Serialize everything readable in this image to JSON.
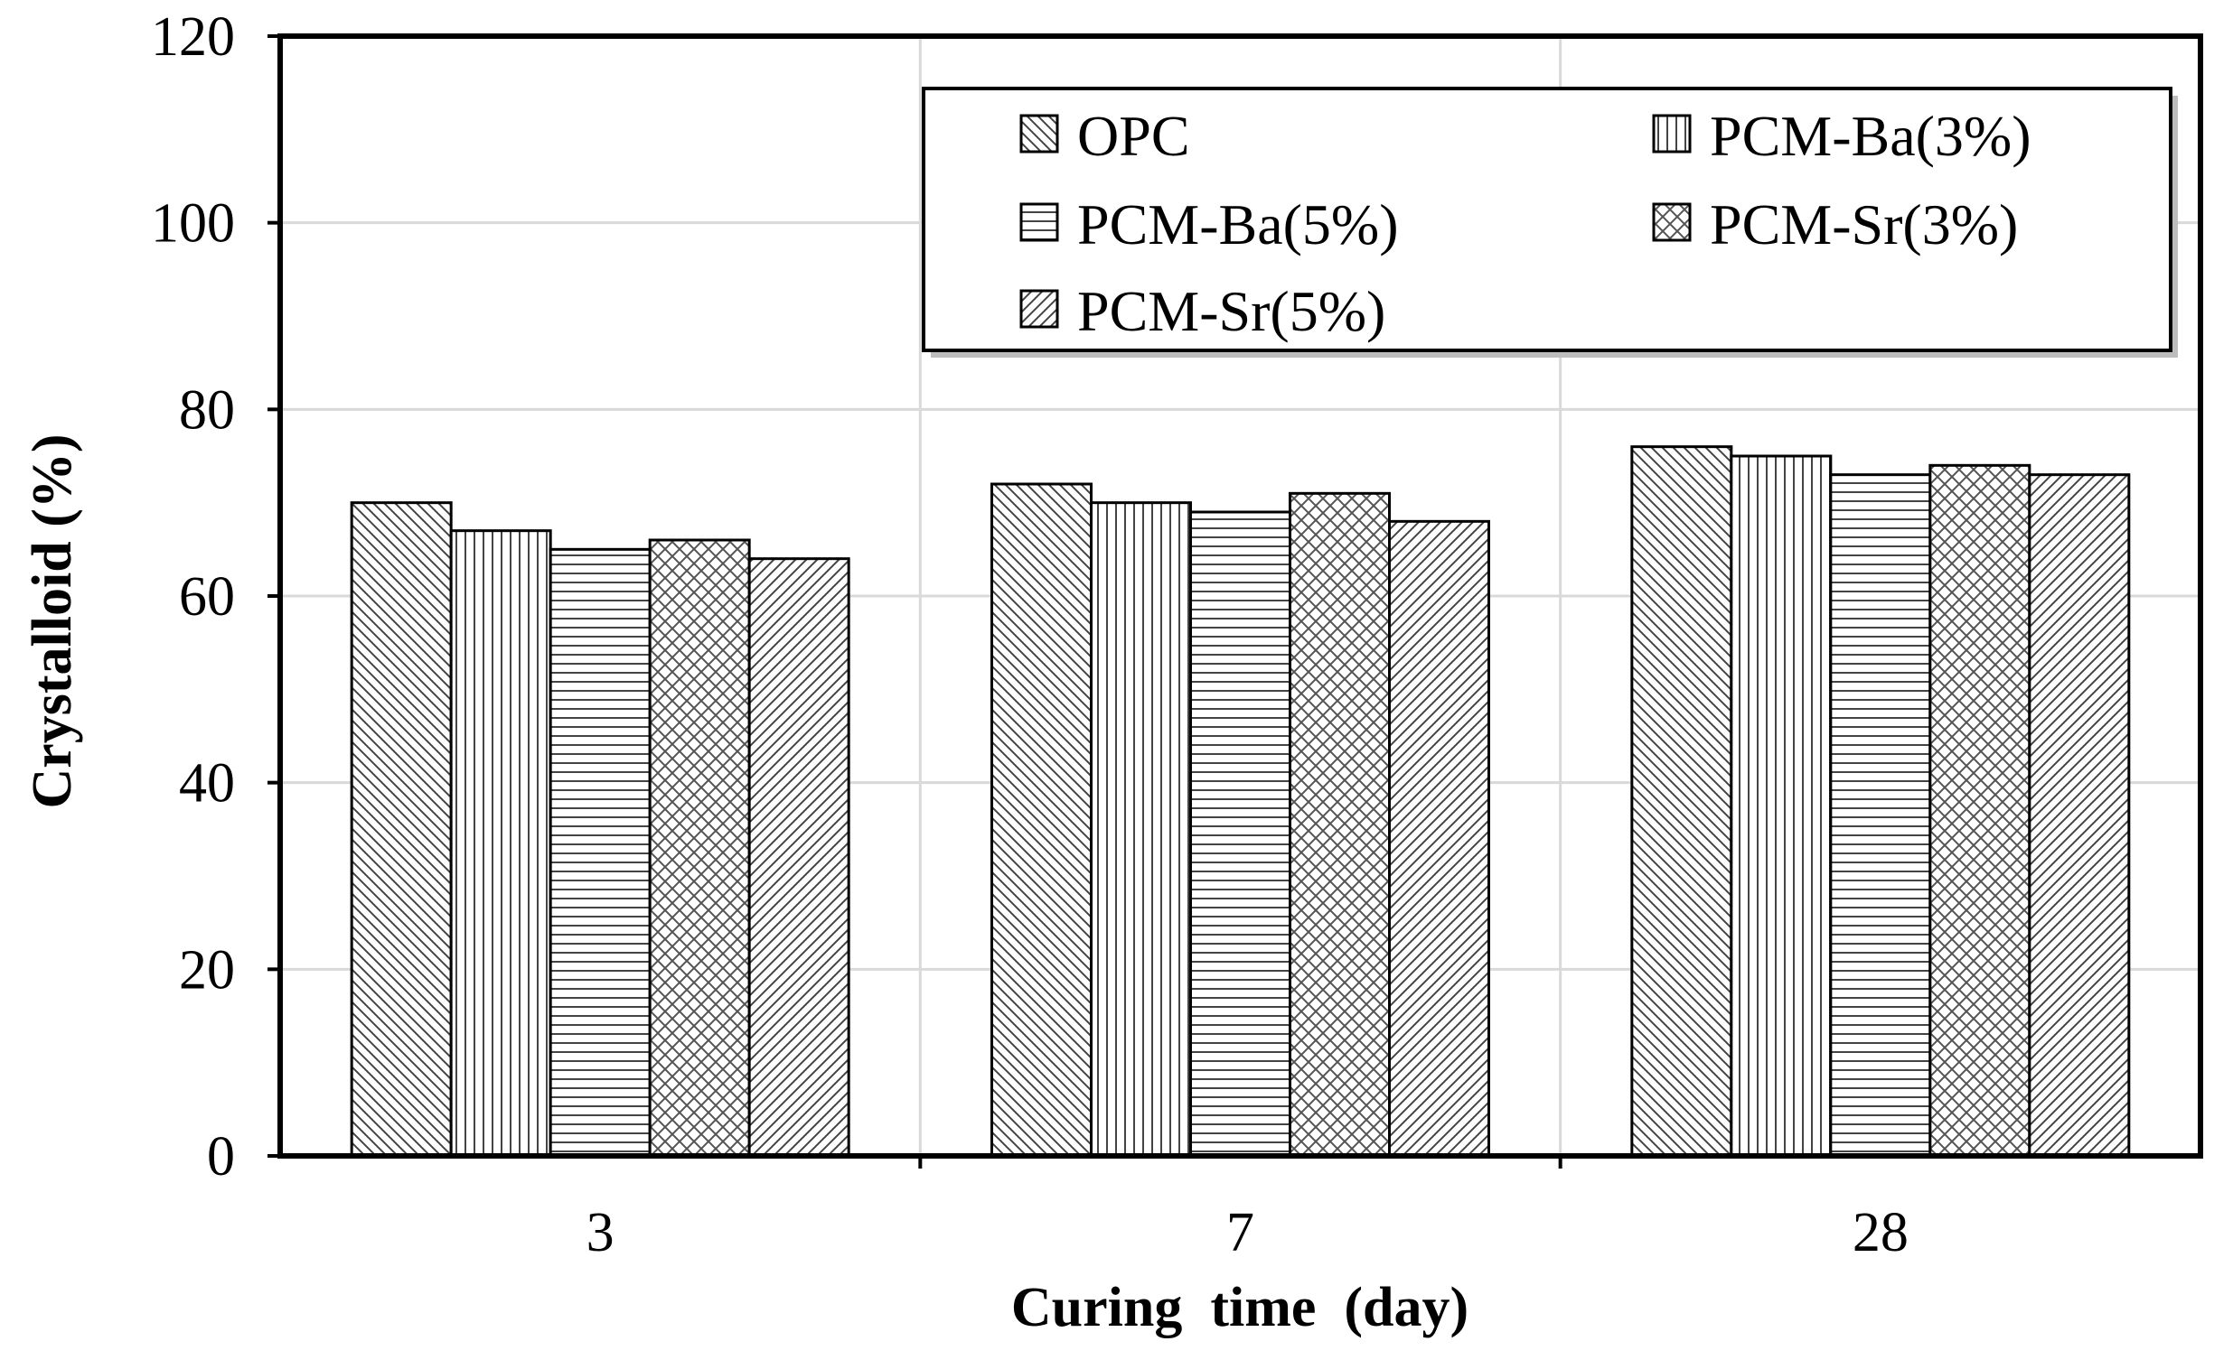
{
  "chart_data": {
    "type": "bar",
    "title": "",
    "xlabel": "Curing  time  (day)",
    "ylabel": "Crystalloid (%)",
    "categories": [
      "3",
      "7",
      "28"
    ],
    "ylim": [
      0,
      120
    ],
    "yticks": [
      0,
      20,
      40,
      60,
      80,
      100,
      120
    ],
    "grid": true,
    "legend_position": "top-right",
    "series": [
      {
        "name": "OPC",
        "pattern": "diag-down",
        "values": [
          70,
          72,
          76
        ]
      },
      {
        "name": "PCM-Ba(3%)",
        "pattern": "vertical",
        "values": [
          67,
          70,
          75
        ]
      },
      {
        "name": "PCM-Ba(5%)",
        "pattern": "horizontal",
        "values": [
          65,
          69,
          73
        ]
      },
      {
        "name": "PCM-Sr(3%)",
        "pattern": "crosshatch",
        "values": [
          66,
          71,
          74
        ]
      },
      {
        "name": "PCM-Sr(5%)",
        "pattern": "diag-up",
        "values": [
          64,
          68,
          73
        ]
      }
    ]
  }
}
